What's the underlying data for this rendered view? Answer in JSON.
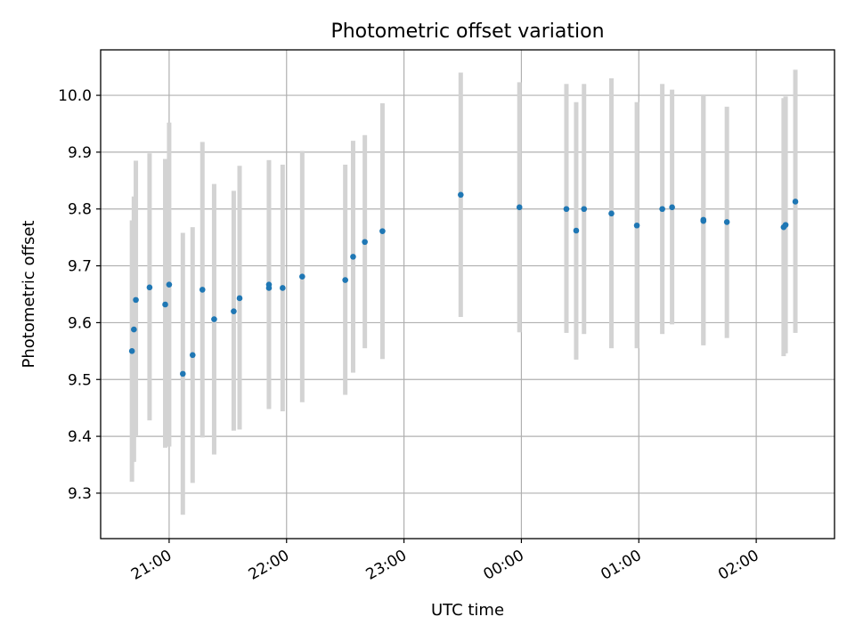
{
  "chart_data": {
    "type": "scatter",
    "title": "Photometric offset variation",
    "xlabel": "UTC time",
    "ylabel": "Photometric offset",
    "x_ticks": [
      "21:00",
      "22:00",
      "23:00",
      "00:00",
      "01:00",
      "02:00"
    ],
    "y_ticks": [
      "9.3",
      "9.4",
      "9.5",
      "9.6",
      "9.7",
      "9.8",
      "9.9",
      "10.0"
    ],
    "xlim": [
      "20:25",
      "02:40"
    ],
    "ylim": [
      9.22,
      10.08
    ],
    "grid": true,
    "colors": {
      "point": "#1f77b4",
      "errorbar": "#d3d3d3",
      "grid": "#b0b0b0"
    },
    "points": [
      {
        "x": "20:41",
        "y": 9.55,
        "ylow": 9.32,
        "yhigh": 9.78
      },
      {
        "x": "20:42",
        "y": 9.588,
        "ylow": 9.355,
        "yhigh": 9.822
      },
      {
        "x": "20:43",
        "y": 9.64,
        "ylow": 9.4,
        "yhigh": 9.885
      },
      {
        "x": "20:50",
        "y": 9.662,
        "ylow": 9.428,
        "yhigh": 9.898
      },
      {
        "x": "20:58",
        "y": 9.632,
        "ylow": 9.38,
        "yhigh": 9.888
      },
      {
        "x": "21:00",
        "y": 9.667,
        "ylow": 9.382,
        "yhigh": 9.952
      },
      {
        "x": "21:07",
        "y": 9.51,
        "ylow": 9.262,
        "yhigh": 9.758
      },
      {
        "x": "21:12",
        "y": 9.543,
        "ylow": 9.318,
        "yhigh": 9.768
      },
      {
        "x": "21:17",
        "y": 9.658,
        "ylow": 9.398,
        "yhigh": 9.918
      },
      {
        "x": "21:23",
        "y": 9.606,
        "ylow": 9.368,
        "yhigh": 9.844
      },
      {
        "x": "21:33",
        "y": 9.62,
        "ylow": 9.41,
        "yhigh": 9.832
      },
      {
        "x": "21:36",
        "y": 9.643,
        "ylow": 9.412,
        "yhigh": 9.876
      },
      {
        "x": "21:51",
        "y": 9.667,
        "ylow": 9.448,
        "yhigh": 9.886
      },
      {
        "x": "21:51",
        "y": 9.661,
        "ylow": 9.45,
        "yhigh": 9.872
      },
      {
        "x": "21:58",
        "y": 9.661,
        "ylow": 9.444,
        "yhigh": 9.878
      },
      {
        "x": "22:08",
        "y": 9.681,
        "ylow": 9.46,
        "yhigh": 9.902
      },
      {
        "x": "22:30",
        "y": 9.675,
        "ylow": 9.473,
        "yhigh": 9.878
      },
      {
        "x": "22:34",
        "y": 9.716,
        "ylow": 9.512,
        "yhigh": 9.92
      },
      {
        "x": "22:40",
        "y": 9.742,
        "ylow": 9.555,
        "yhigh": 9.93
      },
      {
        "x": "22:49",
        "y": 9.761,
        "ylow": 9.536,
        "yhigh": 9.986
      },
      {
        "x": "23:29",
        "y": 9.825,
        "ylow": 9.61,
        "yhigh": 10.04
      },
      {
        "x": "23:59",
        "y": 9.803,
        "ylow": 9.583,
        "yhigh": 10.023
      },
      {
        "x": "00:23",
        "y": 9.8,
        "ylow": 9.582,
        "yhigh": 10.02
      },
      {
        "x": "00:28",
        "y": 9.762,
        "ylow": 9.535,
        "yhigh": 9.988
      },
      {
        "x": "00:32",
        "y": 9.8,
        "ylow": 9.58,
        "yhigh": 10.02
      },
      {
        "x": "00:46",
        "y": 9.792,
        "ylow": 9.555,
        "yhigh": 10.03
      },
      {
        "x": "00:59",
        "y": 9.771,
        "ylow": 9.555,
        "yhigh": 9.988
      },
      {
        "x": "01:12",
        "y": 9.8,
        "ylow": 9.58,
        "yhigh": 10.02
      },
      {
        "x": "01:17",
        "y": 9.803,
        "ylow": 9.597,
        "yhigh": 10.01
      },
      {
        "x": "01:33",
        "y": 9.781,
        "ylow": 9.562,
        "yhigh": 10.0
      },
      {
        "x": "01:33",
        "y": 9.779,
        "ylow": 9.56,
        "yhigh": 9.998
      },
      {
        "x": "01:45",
        "y": 9.777,
        "ylow": 9.573,
        "yhigh": 9.98
      },
      {
        "x": "02:14",
        "y": 9.768,
        "ylow": 9.541,
        "yhigh": 9.995
      },
      {
        "x": "02:15",
        "y": 9.772,
        "ylow": 9.546,
        "yhigh": 9.998
      },
      {
        "x": "02:20",
        "y": 9.813,
        "ylow": 9.582,
        "yhigh": 10.045
      }
    ]
  }
}
